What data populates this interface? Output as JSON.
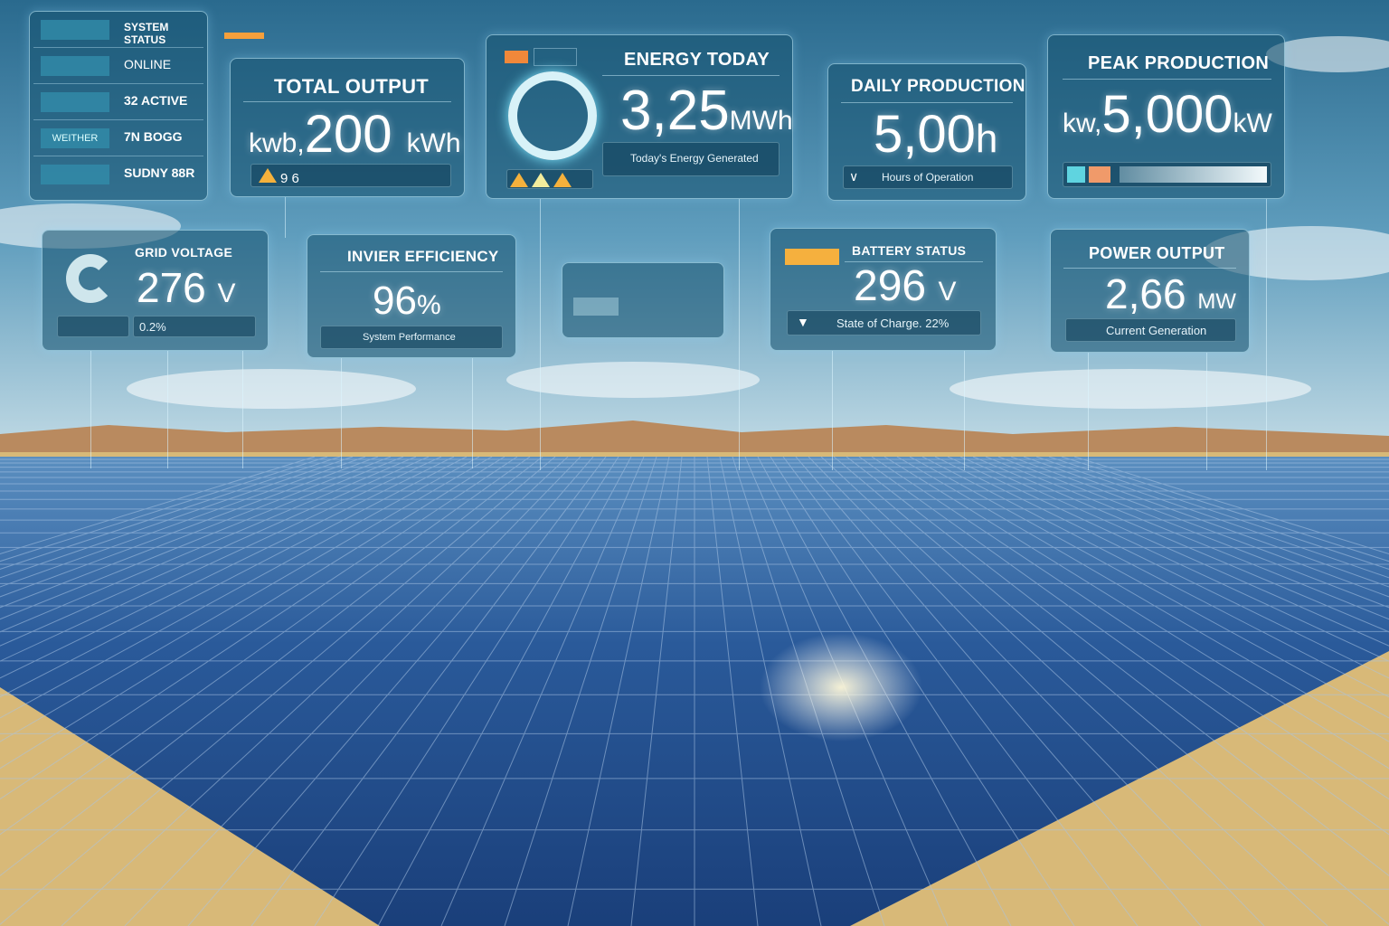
{
  "colors": {
    "accent": "#f5a03c",
    "panel_border": "#bfe9f8",
    "solar_blue": "#1f4c8c"
  },
  "system_status": {
    "rows": [
      {
        "value": "SYSTEM STATUS"
      },
      {
        "value": "ONLINE"
      },
      {
        "value": "32 ACTIVE"
      },
      {
        "tag": "WEITHER",
        "value": "7N BOGG"
      },
      {
        "value": "SUDNY 88R"
      }
    ]
  },
  "total_output": {
    "title": "TOTAL OUTPUT",
    "prefix": "kwb,",
    "value": "200",
    "unit": "kWh",
    "footer": "9 6"
  },
  "energy_today": {
    "title": "ENERGY TODAY",
    "value": "3,25",
    "unit": "MWh",
    "caption": "Today's Energy Generated"
  },
  "daily_production": {
    "title": "DAILY PRODUCTION",
    "value": "5,00",
    "unit": "h",
    "caption": "Hours of Operation"
  },
  "peak_production": {
    "title": "PEAK PRODUCTION",
    "prefix": "kw,",
    "value": "5,000",
    "unit": "kW"
  },
  "grid_voltage": {
    "title": "GRID VOLTAGE",
    "value": "276",
    "unit": "V",
    "footer": "0.2%"
  },
  "inverter_efficiency": {
    "title": "INVIER EFFICIENCY",
    "value": "96",
    "unit": "%",
    "caption": "System Performance"
  },
  "battery_status": {
    "title": "BATTERY STATUS",
    "value": "296",
    "unit": "V",
    "caption": "State of Charge. 22%"
  },
  "power_output": {
    "title": "POWER OUTPUT",
    "value": "2,66",
    "unit": "MW",
    "caption": "Current Generation"
  }
}
